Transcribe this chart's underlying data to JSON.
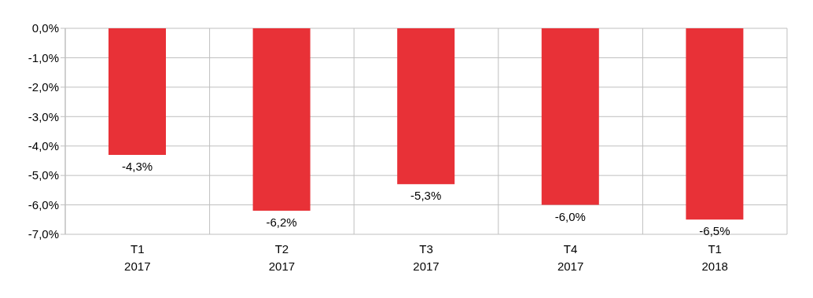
{
  "chart_data": {
    "type": "bar",
    "categories": [
      "T1\n2017",
      "T2\n2017",
      "T3\n2017",
      "T4\n2017",
      "T1\n2018"
    ],
    "values": [
      -4.3,
      -6.2,
      -5.3,
      -6.0,
      -6.5
    ],
    "color": "#e83137",
    "value_labels": [
      "-4,3%",
      "-6,2%",
      "-5,3%",
      "-6,0%",
      "-6,5%"
    ],
    "ylim": [
      -7,
      0
    ],
    "yticks": [
      {
        "value": 0,
        "label": "0,0%"
      },
      {
        "value": -1,
        "label": "-1,0%"
      },
      {
        "value": -2,
        "label": "-2,0%"
      },
      {
        "value": -3,
        "label": "-3,0%"
      },
      {
        "value": -4,
        "label": "-4,0%"
      },
      {
        "value": -5,
        "label": "-5,0%"
      },
      {
        "value": -6,
        "label": "-6,0%"
      },
      {
        "value": -7,
        "label": "-7,0%"
      }
    ],
    "grid": true
  }
}
